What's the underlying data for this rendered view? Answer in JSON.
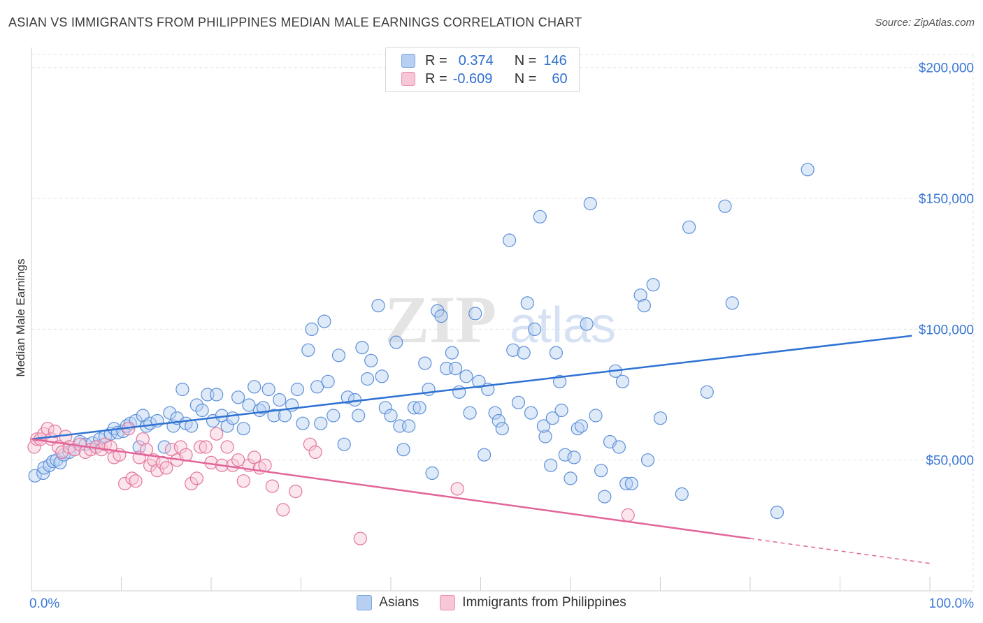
{
  "title": "ASIAN VS IMMIGRANTS FROM PHILIPPINES MEDIAN MALE EARNINGS CORRELATION CHART",
  "source": "Source: ZipAtlas.com",
  "watermark": {
    "zip": "ZIP",
    "atlas": "atlas"
  },
  "legend": {
    "rows": [
      {
        "r_label": "R =",
        "r_value": "0.374",
        "n_label": "N =",
        "n_value": "146",
        "fill": "#b7d0f2",
        "stroke": "#7aa4e0"
      },
      {
        "r_label": "R =",
        "r_value": "-0.609",
        "n_label": "N =",
        "n_value": "60",
        "fill": "#f8c7d7",
        "stroke": "#eb8fb0"
      }
    ]
  },
  "chart_data": {
    "type": "scatter",
    "ylabel": "Median Male Earnings",
    "xlim": [
      0,
      100
    ],
    "ylim": [
      0,
      205000
    ],
    "x_tick_labels": [
      "0.0%",
      "100.0%"
    ],
    "y_ticks": [
      {
        "value": 50000,
        "label": "$50,000"
      },
      {
        "value": 100000,
        "label": "$100,000"
      },
      {
        "value": 150000,
        "label": "$150,000"
      },
      {
        "value": 200000,
        "label": "$200,000"
      }
    ],
    "grid": true,
    "series": [
      {
        "name": "Asians",
        "color": "#5b8fd9",
        "fill": "#b7d0f2",
        "trend_color": "#2e72d2",
        "trend": {
          "x0": 0,
          "y0": 58000,
          "x1": 98,
          "y1": 97500,
          "dash_to": 98
        },
        "points": [
          [
            0.4,
            44000
          ],
          [
            1.3,
            45000
          ],
          [
            1.4,
            47000
          ],
          [
            2.0,
            48000
          ],
          [
            2.4,
            49500
          ],
          [
            2.8,
            50000
          ],
          [
            3.2,
            49000
          ],
          [
            3.6,
            52000
          ],
          [
            4.2,
            53000
          ],
          [
            4.8,
            54000
          ],
          [
            5.4,
            57000
          ],
          [
            6.0,
            56000
          ],
          [
            6.8,
            56500
          ],
          [
            7.2,
            55000
          ],
          [
            7.6,
            58000
          ],
          [
            8.2,
            59000
          ],
          [
            8.8,
            60000
          ],
          [
            9.2,
            62000
          ],
          [
            9.6,
            60500
          ],
          [
            10.2,
            61000
          ],
          [
            10.6,
            63000
          ],
          [
            11.0,
            64000
          ],
          [
            11.6,
            65000
          ],
          [
            12.0,
            55000
          ],
          [
            12.4,
            67000
          ],
          [
            12.8,
            63000
          ],
          [
            13.2,
            64000
          ],
          [
            14.0,
            65000
          ],
          [
            14.8,
            55000
          ],
          [
            15.4,
            68000
          ],
          [
            15.8,
            63000
          ],
          [
            16.2,
            66000
          ],
          [
            16.8,
            77000
          ],
          [
            17.2,
            64000
          ],
          [
            17.8,
            63000
          ],
          [
            18.4,
            71000
          ],
          [
            19.0,
            69000
          ],
          [
            19.6,
            75000
          ],
          [
            20.2,
            65000
          ],
          [
            20.6,
            75000
          ],
          [
            21.2,
            67000
          ],
          [
            21.8,
            63000
          ],
          [
            22.4,
            66000
          ],
          [
            23.0,
            74000
          ],
          [
            23.6,
            62000
          ],
          [
            24.2,
            71000
          ],
          [
            24.8,
            78000
          ],
          [
            25.4,
            69000
          ],
          [
            25.8,
            70000
          ],
          [
            26.4,
            77000
          ],
          [
            27.0,
            67000
          ],
          [
            27.6,
            73000
          ],
          [
            28.2,
            67000
          ],
          [
            29.0,
            71000
          ],
          [
            29.6,
            77000
          ],
          [
            30.2,
            64000
          ],
          [
            30.8,
            92000
          ],
          [
            31.2,
            100000
          ],
          [
            31.8,
            78000
          ],
          [
            32.2,
            64000
          ],
          [
            32.6,
            103000
          ],
          [
            33.0,
            80000
          ],
          [
            33.6,
            67000
          ],
          [
            34.2,
            90000
          ],
          [
            34.8,
            56000
          ],
          [
            35.2,
            74000
          ],
          [
            36.0,
            73000
          ],
          [
            36.4,
            67000
          ],
          [
            36.8,
            93000
          ],
          [
            37.4,
            81000
          ],
          [
            37.8,
            88000
          ],
          [
            38.6,
            109000
          ],
          [
            39.0,
            82000
          ],
          [
            39.4,
            70000
          ],
          [
            40.0,
            67000
          ],
          [
            40.6,
            95000
          ],
          [
            41.0,
            63000
          ],
          [
            41.4,
            54000
          ],
          [
            42.0,
            63000
          ],
          [
            42.6,
            70000
          ],
          [
            43.2,
            70000
          ],
          [
            43.8,
            87000
          ],
          [
            44.2,
            77000
          ],
          [
            44.6,
            45000
          ],
          [
            45.2,
            107000
          ],
          [
            45.6,
            105000
          ],
          [
            46.2,
            85000
          ],
          [
            46.8,
            91000
          ],
          [
            47.2,
            85000
          ],
          [
            47.6,
            76000
          ],
          [
            48.4,
            82000
          ],
          [
            48.8,
            68000
          ],
          [
            49.4,
            106000
          ],
          [
            49.8,
            80000
          ],
          [
            50.4,
            52000
          ],
          [
            50.8,
            77000
          ],
          [
            51.6,
            68000
          ],
          [
            52.0,
            65000
          ],
          [
            52.4,
            62000
          ],
          [
            53.2,
            134000
          ],
          [
            53.6,
            92000
          ],
          [
            54.2,
            72000
          ],
          [
            54.8,
            91000
          ],
          [
            55.2,
            110000
          ],
          [
            55.6,
            68000
          ],
          [
            56.0,
            100000
          ],
          [
            56.6,
            143000
          ],
          [
            57.2,
            59000
          ],
          [
            57.8,
            48000
          ],
          [
            58.4,
            91000
          ],
          [
            58.8,
            80000
          ],
          [
            59.4,
            52000
          ],
          [
            60.0,
            43000
          ],
          [
            60.4,
            51000
          ],
          [
            60.8,
            62000
          ],
          [
            61.2,
            63000
          ],
          [
            61.8,
            102000
          ],
          [
            62.2,
            148000
          ],
          [
            62.8,
            67000
          ],
          [
            63.4,
            46000
          ],
          [
            63.8,
            36000
          ],
          [
            64.4,
            57000
          ],
          [
            65.0,
            84000
          ],
          [
            65.4,
            55000
          ],
          [
            65.8,
            80000
          ],
          [
            66.2,
            41000
          ],
          [
            66.8,
            41000
          ],
          [
            67.8,
            113000
          ],
          [
            68.2,
            109000
          ],
          [
            68.6,
            50000
          ],
          [
            69.2,
            117000
          ],
          [
            70.0,
            66000
          ],
          [
            72.4,
            37000
          ],
          [
            73.2,
            139000
          ],
          [
            75.2,
            76000
          ],
          [
            77.2,
            147000
          ],
          [
            78.0,
            110000
          ],
          [
            86.4,
            161000
          ],
          [
            83.0,
            30000
          ],
          [
            57.0,
            63000
          ],
          [
            58.0,
            66000
          ],
          [
            59.0,
            69000
          ]
        ]
      },
      {
        "name": "Immigrants from Philippines",
        "color": "#e2769c",
        "fill": "#f8c7d7",
        "trend_color": "#e2659a",
        "trend": {
          "x0": 0,
          "y0": 58000,
          "x1": 80,
          "y1": 20000,
          "dash_to": 100
        },
        "points": [
          [
            0.3,
            55000
          ],
          [
            0.6,
            58000
          ],
          [
            1.0,
            58000
          ],
          [
            1.4,
            60000
          ],
          [
            1.8,
            62000
          ],
          [
            2.2,
            58000
          ],
          [
            2.6,
            61000
          ],
          [
            3.0,
            55000
          ],
          [
            3.4,
            53000
          ],
          [
            3.8,
            59000
          ],
          [
            4.2,
            55000
          ],
          [
            4.8,
            54000
          ],
          [
            5.4,
            56000
          ],
          [
            6.0,
            53000
          ],
          [
            6.6,
            54000
          ],
          [
            7.2,
            55000
          ],
          [
            7.8,
            54000
          ],
          [
            8.2,
            56000
          ],
          [
            8.8,
            55000
          ],
          [
            9.2,
            51000
          ],
          [
            9.8,
            52000
          ],
          [
            10.4,
            41000
          ],
          [
            10.8,
            62000
          ],
          [
            11.2,
            43000
          ],
          [
            11.6,
            42000
          ],
          [
            12.0,
            51000
          ],
          [
            12.4,
            58000
          ],
          [
            12.8,
            54000
          ],
          [
            13.2,
            48000
          ],
          [
            13.6,
            50000
          ],
          [
            14.0,
            46000
          ],
          [
            14.6,
            49000
          ],
          [
            15.0,
            47000
          ],
          [
            15.6,
            54000
          ],
          [
            16.2,
            50000
          ],
          [
            16.6,
            55000
          ],
          [
            17.2,
            52000
          ],
          [
            17.8,
            41000
          ],
          [
            18.4,
            43000
          ],
          [
            18.8,
            55000
          ],
          [
            19.4,
            55000
          ],
          [
            20.0,
            49000
          ],
          [
            20.6,
            60000
          ],
          [
            21.2,
            48000
          ],
          [
            21.8,
            55000
          ],
          [
            22.4,
            48000
          ],
          [
            23.0,
            50000
          ],
          [
            23.6,
            42000
          ],
          [
            24.2,
            48000
          ],
          [
            24.8,
            51000
          ],
          [
            25.4,
            47000
          ],
          [
            26.0,
            48000
          ],
          [
            26.8,
            40000
          ],
          [
            28.0,
            31000
          ],
          [
            29.4,
            38000
          ],
          [
            31.0,
            56000
          ],
          [
            31.6,
            53000
          ],
          [
            36.6,
            20000
          ],
          [
            47.4,
            39000
          ],
          [
            66.4,
            29000
          ]
        ]
      }
    ]
  },
  "bottom_legend": [
    "Asians",
    "Immigrants from Philippines"
  ]
}
